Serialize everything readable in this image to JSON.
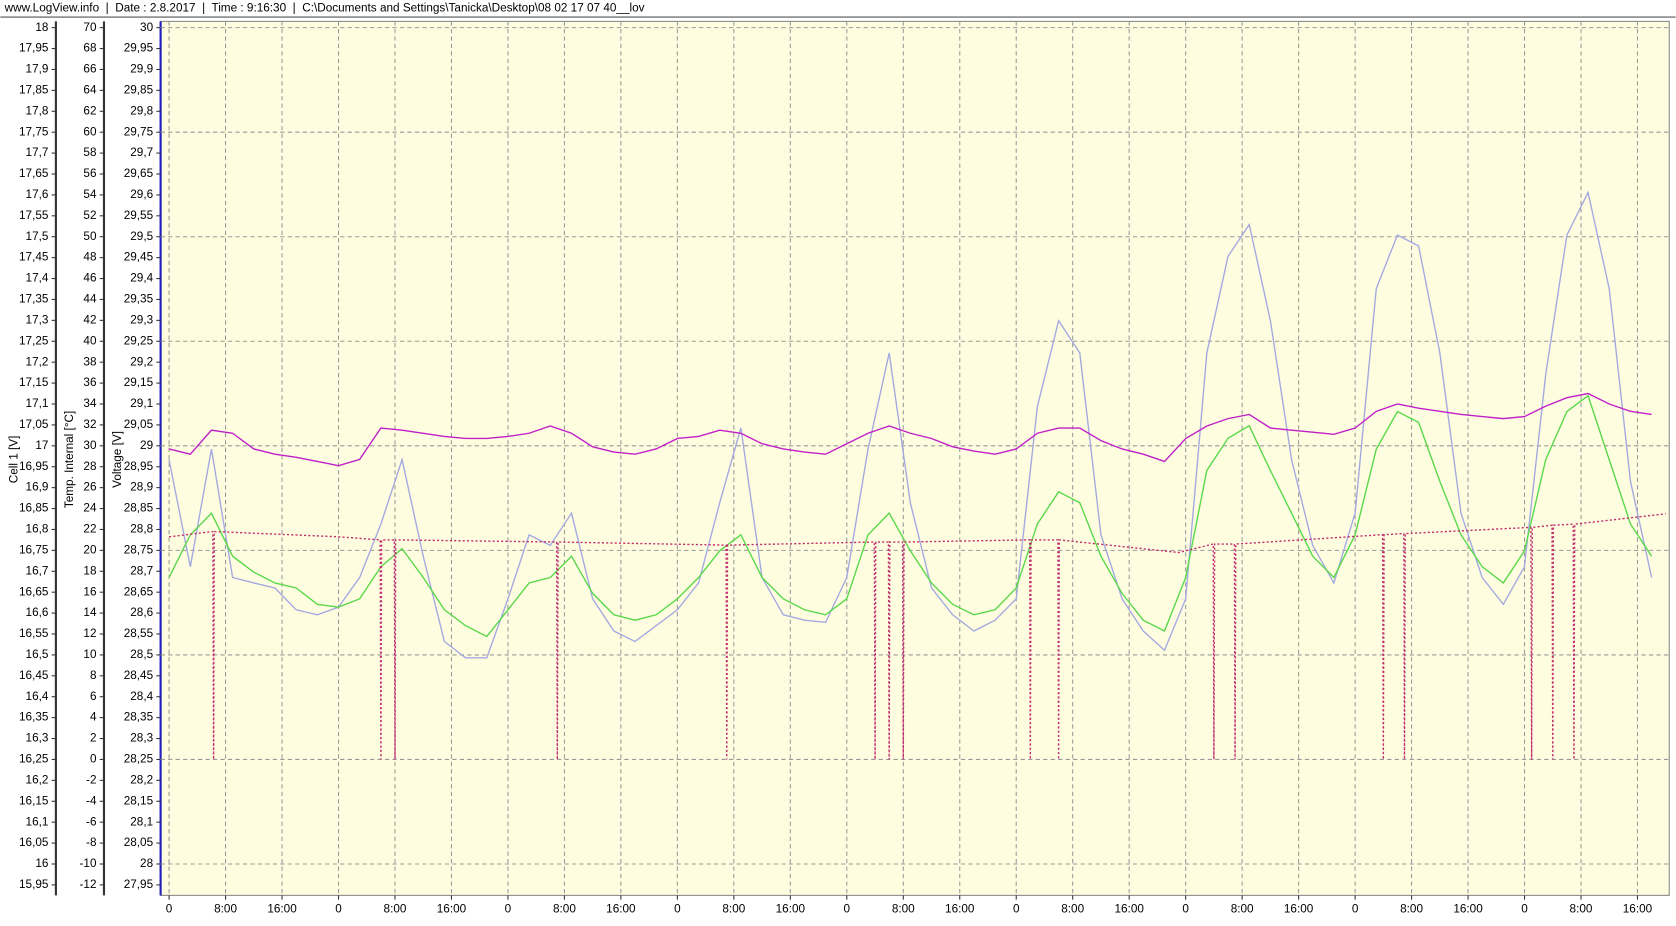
{
  "header": "www.LogView.info  |  Date : 2.8.2017  |  Time : 9:16:30  |  C:\\Documents and Settings\\Tanicka\\Desktop\\08 02 17 07 40__lov",
  "chart_data": {
    "type": "line",
    "ylabel": "Voltage [V]",
    "y2label": "Temp. Internal [°C]",
    "y3label": "Cell 1 [V]",
    "grid": true,
    "background": "#fffde0",
    "xlim": [
      -1.2,
      212.5
    ],
    "ylim": [
      27.925,
      30.015
    ],
    "y2lim": [
      -13,
      70.6
    ],
    "y3lim": [
      15.925,
      18.015
    ],
    "xticks": [
      0,
      {
        "value": 8,
        "label": "8:00"
      },
      {
        "value": 16,
        "label": "16:00"
      },
      {
        "value": 24,
        "label": "0"
      },
      {
        "value": 32,
        "label": "8:00"
      },
      {
        "value": 40,
        "label": "16:00"
      },
      {
        "value": 48,
        "label": "0"
      },
      {
        "value": 56,
        "label": "8:00"
      },
      {
        "value": 64,
        "label": "16:00"
      },
      {
        "value": 72,
        "label": "0"
      },
      {
        "value": 80,
        "label": "8:00"
      },
      {
        "value": 88,
        "label": "16:00"
      },
      {
        "value": 96,
        "label": "0"
      },
      {
        "value": 104,
        "label": "8:00"
      },
      {
        "value": 112,
        "label": "16:00"
      },
      {
        "value": 120,
        "label": "0"
      },
      {
        "value": 128,
        "label": "8:00"
      },
      {
        "value": 136,
        "label": "16:00"
      },
      {
        "value": 144,
        "label": "0"
      },
      {
        "value": 152,
        "label": "8:00"
      },
      {
        "value": 160,
        "label": "16:00"
      },
      {
        "value": 168,
        "label": "0"
      },
      {
        "value": 176,
        "label": "8:00"
      },
      {
        "value": 184,
        "label": "16:00"
      },
      {
        "value": 192,
        "label": "0"
      },
      {
        "value": 200,
        "label": "8:00"
      },
      {
        "value": 208,
        "label": "16:00"
      }
    ],
    "yticks": [
      {
        "value": 27.95,
        "label": "27,95"
      },
      28,
      {
        "value": 28.05,
        "label": "28,05"
      },
      {
        "value": 28.1,
        "label": "28,1"
      },
      {
        "value": 28.15,
        "label": "28,15"
      },
      {
        "value": 28.2,
        "label": "28,2"
      },
      {
        "value": 28.25,
        "label": "28,25"
      },
      {
        "value": 28.3,
        "label": "28,3"
      },
      {
        "value": 28.35,
        "label": "28,35"
      },
      {
        "value": 28.4,
        "label": "28,4"
      },
      {
        "value": 28.45,
        "label": "28,45"
      },
      {
        "value": 28.5,
        "label": "28,5"
      },
      {
        "value": 28.55,
        "label": "28,55"
      },
      {
        "value": 28.6,
        "label": "28,6"
      },
      {
        "value": 28.65,
        "label": "28,65"
      },
      {
        "value": 28.7,
        "label": "28,7"
      },
      {
        "value": 28.75,
        "label": "28,75"
      },
      {
        "value": 28.8,
        "label": "28,8"
      },
      {
        "value": 28.85,
        "label": "28,85"
      },
      {
        "value": 28.9,
        "label": "28,9"
      },
      {
        "value": 28.95,
        "label": "28,95"
      },
      29,
      {
        "value": 29.05,
        "label": "29,05"
      },
      {
        "value": 29.1,
        "label": "29,1"
      },
      {
        "value": 29.15,
        "label": "29,15"
      },
      {
        "value": 29.2,
        "label": "29,2"
      },
      {
        "value": 29.25,
        "label": "29,25"
      },
      {
        "value": 29.3,
        "label": "29,3"
      },
      {
        "value": 29.35,
        "label": "29,35"
      },
      {
        "value": 29.4,
        "label": "29,4"
      },
      {
        "value": 29.45,
        "label": "29,45"
      },
      {
        "value": 29.5,
        "label": "29,5"
      },
      {
        "value": 29.55,
        "label": "29,55"
      },
      {
        "value": 29.6,
        "label": "29,6"
      },
      {
        "value": 29.65,
        "label": "29,65"
      },
      {
        "value": 29.7,
        "label": "29,7"
      },
      {
        "value": 29.75,
        "label": "29,75"
      },
      {
        "value": 29.8,
        "label": "29,8"
      },
      {
        "value": 29.85,
        "label": "29,85"
      },
      {
        "value": 29.9,
        "label": "29,9"
      },
      {
        "value": 29.95,
        "label": "29,95"
      },
      30
    ],
    "y2ticks": [
      -12,
      -10,
      -8,
      -6,
      -4,
      -2,
      0,
      2,
      4,
      6,
      8,
      10,
      12,
      14,
      16,
      18,
      20,
      22,
      24,
      26,
      28,
      30,
      32,
      34,
      36,
      38,
      40,
      42,
      44,
      46,
      48,
      50,
      52,
      54,
      56,
      58,
      60,
      62,
      64,
      66,
      68,
      70
    ],
    "y3ticks": [
      {
        "value": 15.95,
        "label": "15,95"
      },
      16,
      {
        "value": 16.05,
        "label": "16,05"
      },
      {
        "value": 16.1,
        "label": "16,1"
      },
      {
        "value": 16.15,
        "label": "16,15"
      },
      {
        "value": 16.2,
        "label": "16,2"
      },
      {
        "value": 16.25,
        "label": "16,25"
      },
      {
        "value": 16.3,
        "label": "16,3"
      },
      {
        "value": 16.35,
        "label": "16,35"
      },
      {
        "value": 16.4,
        "label": "16,4"
      },
      {
        "value": 16.45,
        "label": "16,45"
      },
      {
        "value": 16.5,
        "label": "16,5"
      },
      {
        "value": 16.55,
        "label": "16,55"
      },
      {
        "value": 16.6,
        "label": "16,6"
      },
      {
        "value": 16.65,
        "label": "16,65"
      },
      {
        "value": 16.7,
        "label": "16,7"
      },
      {
        "value": 16.75,
        "label": "16,75"
      },
      {
        "value": 16.8,
        "label": "16,8"
      },
      {
        "value": 16.85,
        "label": "16,85"
      },
      {
        "value": 16.9,
        "label": "16,9"
      },
      {
        "value": 16.95,
        "label": "16,95"
      },
      17,
      {
        "value": 17.05,
        "label": "17,05"
      },
      {
        "value": 17.1,
        "label": "17,1"
      },
      {
        "value": 17.15,
        "label": "17,15"
      },
      {
        "value": 17.2,
        "label": "17,2"
      },
      {
        "value": 17.25,
        "label": "17,25"
      },
      {
        "value": 17.3,
        "label": "17,3"
      },
      {
        "value": 17.35,
        "label": "17,35"
      },
      {
        "value": 17.4,
        "label": "17,4"
      },
      {
        "value": 17.45,
        "label": "17,45"
      },
      {
        "value": 17.5,
        "label": "17,5"
      },
      {
        "value": 17.55,
        "label": "17,55"
      },
      {
        "value": 17.6,
        "label": "17,6"
      },
      {
        "value": 17.65,
        "label": "17,65"
      },
      {
        "value": 17.7,
        "label": "17,7"
      },
      {
        "value": 17.75,
        "label": "17,75"
      },
      {
        "value": 17.8,
        "label": "17,8"
      },
      {
        "value": 17.85,
        "label": "17,85"
      },
      {
        "value": 17.9,
        "label": "17,9"
      },
      {
        "value": 17.95,
        "label": "17,95"
      },
      18
    ],
    "x": [
      0,
      3,
      6,
      9,
      12,
      15,
      18,
      21,
      24,
      27,
      30,
      33,
      36,
      39,
      42,
      45,
      48,
      51,
      54,
      57,
      60,
      63,
      66,
      69,
      72,
      75,
      78,
      81,
      84,
      87,
      90,
      93,
      96,
      99,
      102,
      105,
      108,
      111,
      114,
      117,
      120,
      123,
      126,
      129,
      132,
      135,
      138,
      141,
      144,
      147,
      150,
      153,
      156,
      159,
      162,
      165,
      168,
      171,
      174,
      177,
      180,
      183,
      186,
      189,
      192,
      195,
      198,
      201,
      204,
      207,
      210
    ],
    "series": [
      {
        "axis": "y",
        "color": "#a4aae0",
        "values": [
          28.967,
          28.711,
          28.992,
          28.685,
          28.672,
          28.66,
          28.608,
          28.596,
          28.614,
          28.685,
          28.813,
          28.967,
          28.736,
          28.532,
          28.493,
          28.493,
          28.634,
          28.787,
          28.762,
          28.839,
          28.634,
          28.557,
          28.532,
          28.57,
          28.608,
          28.672,
          28.864,
          29.043,
          28.685,
          28.596,
          28.583,
          28.578,
          28.685,
          28.992,
          29.222,
          28.864,
          28.66,
          28.596,
          28.557,
          28.583,
          28.634,
          29.094,
          29.299,
          29.222,
          28.787,
          28.634,
          28.557,
          28.511,
          28.634,
          29.222,
          29.453,
          29.529,
          29.299,
          28.967,
          28.762,
          28.672,
          28.839,
          29.376,
          29.504,
          29.478,
          29.222,
          28.839,
          28.685,
          28.621,
          28.711,
          29.171,
          29.504,
          29.606,
          29.376,
          28.915,
          28.685
        ]
      },
      {
        "axis": "y2",
        "color": "#c020c8",
        "values": [
          29.7,
          29.2,
          31.5,
          31.2,
          29.7,
          29.2,
          28.9,
          28.5,
          28.1,
          28.7,
          31.7,
          31.5,
          31.2,
          30.9,
          30.7,
          30.7,
          30.9,
          31.2,
          31.9,
          31.2,
          29.9,
          29.4,
          29.2,
          29.7,
          30.7,
          30.9,
          31.5,
          31.2,
          30.2,
          29.7,
          29.4,
          29.2,
          30.2,
          31.2,
          31.9,
          31.2,
          30.7,
          29.9,
          29.5,
          29.2,
          29.7,
          31.2,
          31.7,
          31.7,
          30.5,
          29.7,
          29.2,
          28.5,
          30.7,
          31.9,
          32.6,
          33.0,
          31.7,
          31.5,
          31.3,
          31.1,
          31.7,
          33.3,
          34.0,
          33.6,
          33.3,
          33.0,
          32.8,
          32.6,
          32.8,
          33.8,
          34.6,
          35.0,
          34.0,
          33.3,
          33.0
        ]
      },
      {
        "axis": "y3",
        "color": "#5ad84a",
        "values": [
          16.685,
          16.787,
          16.839,
          16.736,
          16.698,
          16.672,
          16.66,
          16.621,
          16.614,
          16.634,
          16.711,
          16.754,
          16.685,
          16.608,
          16.57,
          16.544,
          16.608,
          16.672,
          16.685,
          16.736,
          16.647,
          16.596,
          16.583,
          16.596,
          16.634,
          16.685,
          16.749,
          16.787,
          16.685,
          16.634,
          16.608,
          16.596,
          16.634,
          16.787,
          16.839,
          16.749,
          16.672,
          16.621,
          16.596,
          16.608,
          16.66,
          16.813,
          16.89,
          16.864,
          16.736,
          16.647,
          16.583,
          16.557,
          16.685,
          16.941,
          17.018,
          17.048,
          16.941,
          16.839,
          16.736,
          16.685,
          16.787,
          16.992,
          17.082,
          17.056,
          16.915,
          16.787,
          16.711,
          16.672,
          16.749,
          16.967,
          17.082,
          17.12,
          16.967,
          16.813,
          16.736
        ]
      },
      {
        "axis": "y2",
        "color": "#c03070",
        "dashed": true,
        "x": [
          0,
          6.2,
          6.3,
          6.4,
          24,
          29.9,
          30,
          30.1,
          31.9,
          32,
          32.1,
          54.9,
          55,
          55.1,
          78.9,
          79,
          79.1,
          99.9,
          100,
          100.1,
          101.9,
          102,
          102.1,
          103.9,
          104,
          104.1,
          121.9,
          122,
          122.1,
          125.9,
          126,
          126.1,
          143,
          147.9,
          148,
          148.1,
          150.9,
          151,
          151.1,
          171.9,
          172,
          172.1,
          174.9,
          175,
          175.1,
          192.9,
          193,
          193.1,
          195.9,
          196,
          196.1,
          198.9,
          199,
          199.1,
          212
        ],
        "values": [
          21.3,
          21.8,
          0,
          21.8,
          21.3,
          21,
          0,
          21,
          21,
          0,
          21,
          20.8,
          0,
          20.8,
          20.5,
          0,
          20.5,
          20.8,
          0,
          20.8,
          20.8,
          0,
          20.8,
          20.8,
          0,
          20.8,
          21,
          0,
          21,
          21,
          0,
          21,
          19.8,
          20.6,
          0,
          20.6,
          20.6,
          0,
          20.6,
          21.5,
          0,
          21.5,
          21.6,
          0,
          21.6,
          22.2,
          0,
          22.2,
          22.4,
          0,
          22.4,
          22.5,
          0,
          22.5,
          23.5
        ]
      }
    ]
  }
}
